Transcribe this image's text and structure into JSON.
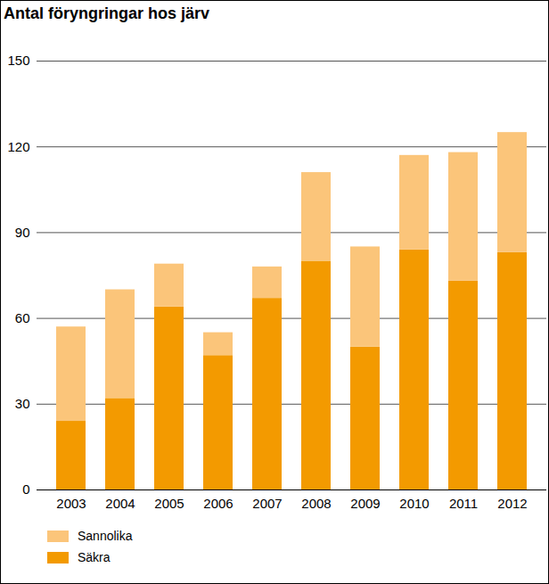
{
  "chart_data": {
    "type": "bar",
    "title": "Antal föryngringar hos järv",
    "categories": [
      "2003",
      "2004",
      "2005",
      "2006",
      "2007",
      "2008",
      "2009",
      "2010",
      "2011",
      "2012"
    ],
    "series": [
      {
        "name": "Säkra",
        "color": "#f39a00",
        "values": [
          24,
          32,
          64,
          47,
          67,
          80,
          50,
          84,
          73,
          83
        ]
      },
      {
        "name": "Sannolika",
        "color": "#fbc57a",
        "values": [
          33,
          38,
          15,
          8,
          11,
          31,
          35,
          33,
          45,
          42
        ]
      }
    ],
    "stacked": true,
    "ylim": [
      0,
      150
    ],
    "yticks": [
      0,
      30,
      60,
      90,
      120,
      150
    ],
    "grid": true
  }
}
